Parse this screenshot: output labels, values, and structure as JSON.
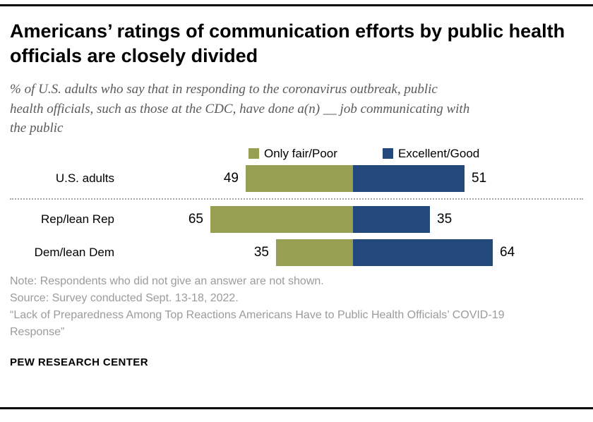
{
  "header": {
    "title": "Americans’ ratings of communication efforts by public health officials are closely divided",
    "subtitle": "% of U.S. adults who say that in responding to the coronavirus outbreak, public health officials, such as those at the CDC, have done a(n) __ job communicating with the public"
  },
  "legend": [
    {
      "label": "Only fair/Poor",
      "color": "#97a052"
    },
    {
      "label": "Excellent/Good",
      "color": "#23487c"
    }
  ],
  "chart_data": {
    "type": "bar",
    "subtype": "horizontal-diverging-stacked",
    "categories": [
      "U.S. adults",
      "Rep/lean Rep",
      "Dem/lean Dem"
    ],
    "series": [
      {
        "name": "Only fair/Poor",
        "color": "#97a052",
        "values": [
          49,
          65,
          35
        ]
      },
      {
        "name": "Excellent/Good",
        "color": "#23487c",
        "values": [
          51,
          35,
          64
        ]
      }
    ],
    "value_labels_shown": true,
    "divider_after_category": "U.S. adults",
    "xlim": [
      0,
      100
    ],
    "legend_position": "top",
    "grid": false
  },
  "footer": {
    "note": "Note: Respondents who did not give an answer are not shown.",
    "source": "Source: Survey conducted Sept. 13-18, 2022.",
    "report": "“Lack of Preparedness Among Top Reactions Americans Have to Public Health Officials’ COVID-19 Response”",
    "brand": "PEW RESEARCH CENTER"
  }
}
